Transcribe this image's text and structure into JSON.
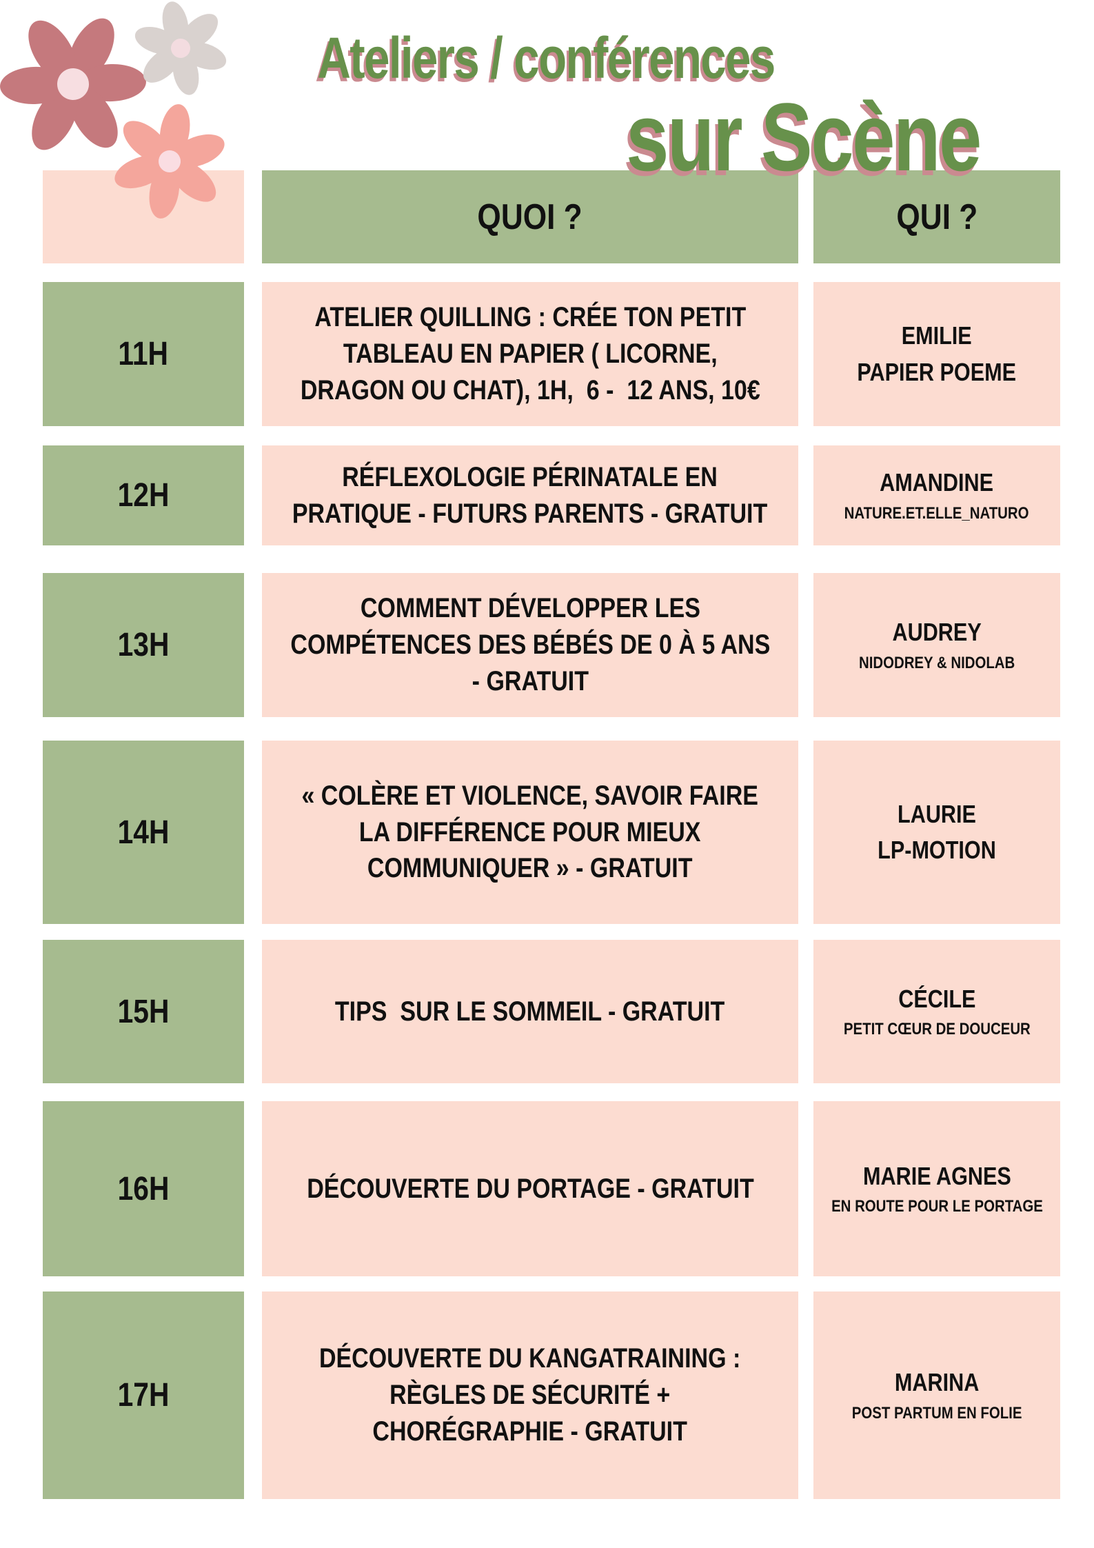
{
  "title": {
    "line1": "Ateliers / conférences",
    "line2": "sur Scène"
  },
  "table": {
    "header": {
      "what": "QUOI ?",
      "who": "QUI ?"
    },
    "rows": [
      {
        "time": "11H",
        "what_lines": [
          "ATELIER QUILLING : CRÉE TON PETIT",
          "TABLEAU EN PAPIER ( LICORNE,",
          "DRAGON OU CHAT), 1H,  6 -  12 ANS, 10€"
        ],
        "who_name": "EMILIE",
        "who_org": "PAPIER POEME"
      },
      {
        "time": "12H",
        "what_lines": [
          "RÉFLEXOLOGIE PÉRINATALE EN",
          "PRATIQUE - FUTURS PARENTS - GRATUIT"
        ],
        "who_name": "AMANDINE",
        "who_org": "NATURE.ET.ELLE_NATURO"
      },
      {
        "time": "13H",
        "what_lines": [
          "COMMENT DÉVELOPPER LES",
          "COMPÉTENCES DES BÉBÉS DE 0 À 5 ANS",
          "- GRATUIT"
        ],
        "who_name": "AUDREY",
        "who_org": "NIDODREY & NIDOLAB"
      },
      {
        "time": "14H",
        "what_lines": [
          "« COLÈRE ET VIOLENCE, SAVOIR FAIRE",
          "LA DIFFÉRENCE POUR MIEUX",
          "COMMUNIQUER » - GRATUIT"
        ],
        "who_name": "LAURIE",
        "who_org": "LP-MOTION"
      },
      {
        "time": "15H",
        "what_lines": [
          "TIPS  SUR LE SOMMEIL - GRATUIT"
        ],
        "who_name": "CÉCILE",
        "who_org": "PETIT CŒUR DE DOUCEUR"
      },
      {
        "time": "16H",
        "what_lines": [
          "DÉCOUVERTE DU PORTAGE - GRATUIT"
        ],
        "who_name": "MARIE AGNES",
        "who_org": "EN ROUTE POUR LE PORTAGE"
      },
      {
        "time": "17H",
        "what_lines": [
          "DÉCOUVERTE DU KANGATRAINING :",
          "RÈGLES DE SÉCURITÉ +",
          "CHORÉGRAPHIE - GRATUIT"
        ],
        "who_name": "MARINA",
        "who_org": "POST PARTUM EN FOLIE"
      }
    ]
  },
  "decorations": {
    "flowers": [
      {
        "name": "flower-mauve",
        "petal_color": "#c5797d",
        "center_color": "#f7dee1"
      },
      {
        "name": "flower-gray",
        "petal_color": "#d9d2cf",
        "center_color": "#f3dce0"
      },
      {
        "name": "flower-salmon",
        "petal_color": "#f4a69c",
        "center_color": "#fadde2"
      }
    ]
  },
  "colors": {
    "page_bg": "#ffffff",
    "sage_green": "#a6bb8f",
    "blush_pink": "#fcdcd1",
    "title_green": "#67914b",
    "title_shadow_pink": "#ca8a90",
    "text_black": "#111111"
  }
}
